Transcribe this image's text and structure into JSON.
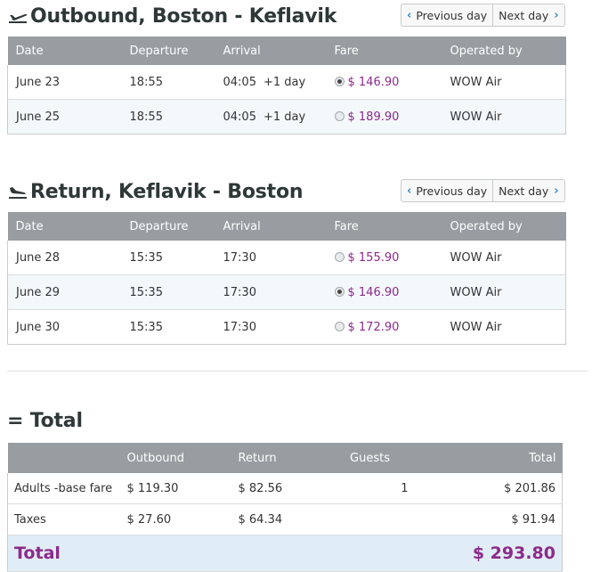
{
  "outbound": {
    "title": "Outbound, Boston - Keflavik",
    "prev_label": "Previous day",
    "next_label": "Next day",
    "columns": [
      "Date",
      "Departure",
      "Arrival",
      "Fare",
      "Operated by"
    ],
    "rows": [
      {
        "date": "June 23",
        "departure": "18:55",
        "arrival": "04:05",
        "arrival_note": "+1 day",
        "fare": "$ 146.90",
        "selected": true,
        "operator": "WOW Air"
      },
      {
        "date": "June 25",
        "departure": "18:55",
        "arrival": "04:05",
        "arrival_note": "+1 day",
        "fare": "$ 189.90",
        "selected": false,
        "operator": "WOW Air"
      }
    ]
  },
  "return": {
    "title": "Return, Keflavik - Boston",
    "prev_label": "Previous day",
    "next_label": "Next day",
    "columns": [
      "Date",
      "Departure",
      "Arrival",
      "Fare",
      "Operated by"
    ],
    "rows": [
      {
        "date": "June 28",
        "departure": "15:35",
        "arrival": "17:30",
        "fare": "$ 155.90",
        "selected": false,
        "operator": "WOW Air"
      },
      {
        "date": "June 29",
        "departure": "15:35",
        "arrival": "17:30",
        "fare": "$ 146.90",
        "selected": true,
        "operator": "WOW Air"
      },
      {
        "date": "June 30",
        "departure": "15:35",
        "arrival": "17:30",
        "fare": "$ 172.90",
        "selected": false,
        "operator": "WOW Air"
      }
    ]
  },
  "total": {
    "title": "= Total",
    "columns": [
      "",
      "Outbound",
      "Return",
      "Guests",
      "Total"
    ],
    "rows": [
      {
        "label": "Adults -base fare",
        "outbound": "$ 119.30",
        "return": "$ 82.56",
        "guests": "1",
        "total": "$ 201.86"
      },
      {
        "label": "Taxes",
        "outbound": "$ 27.60",
        "return": "$ 64.34",
        "guests": "",
        "total": "$ 91.94"
      }
    ],
    "grand_label": "Total",
    "grand_value": "$ 293.80"
  },
  "colors": {
    "header_bg": "#979da0",
    "fare": "#8c2a8c",
    "accent": "#3a8cc9",
    "alt_row": "#f3f8fb"
  },
  "icons": {
    "outbound": "plane-takeoff-icon",
    "return": "plane-landing-icon",
    "prev": "chevron-left-icon",
    "next": "chevron-right-icon"
  }
}
